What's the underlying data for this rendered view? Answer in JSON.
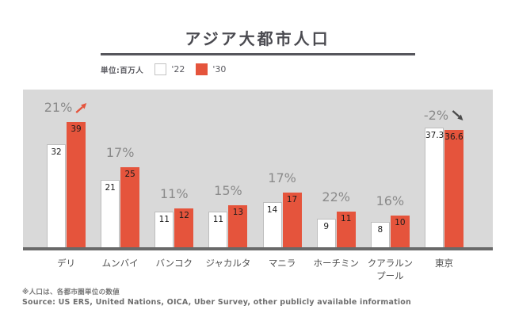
{
  "title": "アジア大都市人口",
  "legend": {
    "unit_label": "単位:百万人",
    "series": [
      {
        "label": "'22",
        "swatch": "white"
      },
      {
        "label": "'30",
        "swatch": "orange"
      }
    ]
  },
  "colors": {
    "accent_orange": "#e5543c",
    "plot_background": "#d9d9d9",
    "baseline": "#696969",
    "pct_label": "#8a8a8a",
    "title_text": "#4a4a50"
  },
  "chart_data": {
    "type": "bar",
    "title": "アジア大都市人口",
    "unit": "百万人",
    "categories": [
      "デリ",
      "ムンバイ",
      "バンコク",
      "ジャカルタ",
      "マニラ",
      "ホーチミン",
      "クアラルンプール",
      "東京"
    ],
    "series": [
      {
        "name": "'22",
        "values": [
          32,
          21,
          11,
          11,
          14,
          9,
          8,
          37.3
        ]
      },
      {
        "name": "'30",
        "values": [
          39,
          25,
          12,
          13,
          17,
          11,
          10,
          36.6
        ]
      }
    ],
    "pct_change": [
      "21%",
      "17%",
      "11%",
      "15%",
      "17%",
      "22%",
      "16%",
      "-2%"
    ],
    "pct_arrows": [
      "up",
      null,
      null,
      null,
      null,
      null,
      null,
      "down"
    ],
    "ylim": [
      0,
      45
    ],
    "grid": false,
    "legend_position": "top-left"
  },
  "footnote": "※人口は、各都市圏単位の数値",
  "source": "Source: US ERS, United Nations, OICA, Uber Survey, other publicly available information"
}
